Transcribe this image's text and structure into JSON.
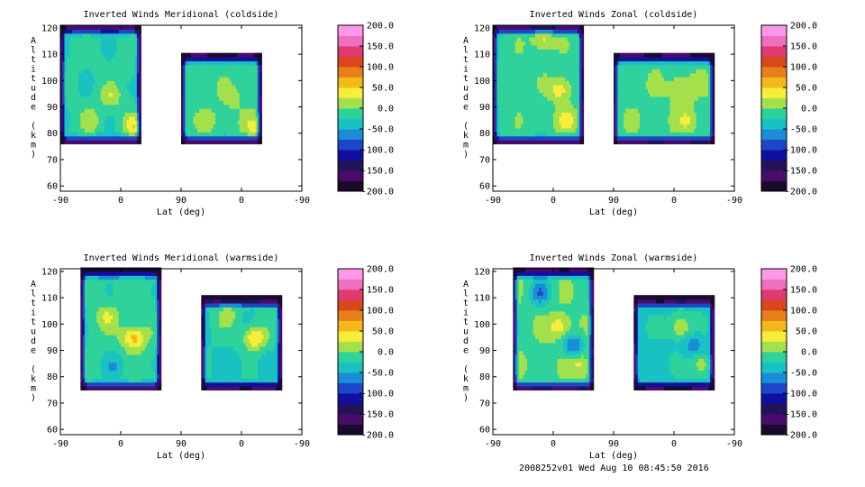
{
  "footer": "2008252v01 Wed Aug 10 08:45:50 2016",
  "chart_data": [
    {
      "type": "heatmap",
      "title": "Inverted Winds Meridional (coldside)",
      "xlabel": "Lat (deg)",
      "ylabel": "Altitude (km)",
      "x_ticks": [
        "-90",
        "0",
        "90",
        "0",
        "-90"
      ],
      "y_ticks": [
        "60",
        "70",
        "80",
        "90",
        "100",
        "110",
        "120"
      ],
      "ylim": [
        58,
        121
      ],
      "colorbar": {
        "min": -200,
        "max": 200,
        "labels": [
          "200.0",
          "150.0",
          "100.0",
          "50.0",
          "0.0",
          "-50.0",
          "-100.0",
          "-150.0",
          "-200.0"
        ]
      },
      "panels": [
        {
          "lat_range": [
            -90,
            30
          ],
          "alt_range": [
            76,
            121
          ],
          "base": -20
        },
        {
          "lat_range": [
            -90,
            30
          ],
          "alt_range": [
            76,
            110
          ],
          "base": -10
        }
      ],
      "features": [
        {
          "lat": -15,
          "alt": 94,
          "value": 20
        },
        {
          "lat": 5,
          "alt": 103,
          "value": -10
        },
        {
          "lat": -45,
          "alt": 85,
          "value": 15
        },
        {
          "lat": 20,
          "alt": 83,
          "value": 40
        }
      ]
    },
    {
      "type": "heatmap",
      "title": "Inverted Winds Zonal (coldside)",
      "xlabel": "Lat (deg)",
      "ylabel": "Altitude (km)",
      "x_ticks": [
        "-90",
        "0",
        "90",
        "0",
        "-90"
      ],
      "y_ticks": [
        "60",
        "70",
        "80",
        "90",
        "100",
        "110",
        "120"
      ],
      "ylim": [
        58,
        121
      ],
      "colorbar": {
        "min": -200,
        "max": 200,
        "labels": [
          "200.0",
          "150.0",
          "100.0",
          "50.0",
          "0.0",
          "-50.0",
          "-100.0",
          "-150.0",
          "-200.0"
        ]
      },
      "panels": [
        {
          "lat_range": [
            -90,
            45
          ],
          "alt_range": [
            76,
            121
          ],
          "base": -10
        },
        {
          "lat_range": [
            -90,
            60
          ],
          "alt_range": [
            76,
            110
          ],
          "base": -5
        }
      ],
      "features": [
        {
          "lat": 10,
          "alt": 97,
          "value": 45
        },
        {
          "lat": -15,
          "alt": 116,
          "value": 35
        },
        {
          "lat": 20,
          "alt": 85,
          "value": 35
        }
      ]
    },
    {
      "type": "heatmap",
      "title": "Inverted Winds Meridional (warmside)",
      "xlabel": "Lat (deg)",
      "ylabel": "Altitude (km)",
      "x_ticks": [
        "-90",
        "0",
        "90",
        "0",
        "-90"
      ],
      "y_ticks": [
        "60",
        "70",
        "80",
        "90",
        "100",
        "110",
        "120"
      ],
      "ylim": [
        58,
        121
      ],
      "colorbar": {
        "min": -200,
        "max": 200,
        "labels": [
          "200.0",
          "150.0",
          "100.0",
          "50.0",
          "0.0",
          "-50.0",
          "-100.0",
          "-150.0",
          "-200.0"
        ]
      },
      "panels": [
        {
          "lat_range": [
            -60,
            60
          ],
          "alt_range": [
            75,
            121
          ],
          "base": -15
        },
        {
          "lat_range": [
            -60,
            60
          ],
          "alt_range": [
            75,
            110
          ],
          "base": -25
        }
      ],
      "features": [
        {
          "lat": 15,
          "alt": 95,
          "value": 30
        },
        {
          "lat": -20,
          "alt": 103,
          "value": 25
        },
        {
          "lat": -10,
          "alt": 84,
          "value": -45
        },
        {
          "lat": 25,
          "alt": 95,
          "value": 25
        }
      ]
    },
    {
      "type": "heatmap",
      "title": "Inverted Winds Zonal (warmside)",
      "xlabel": "Lat (deg)",
      "ylabel": "Altitude (km)",
      "x_ticks": [
        "-90",
        "0",
        "90",
        "0",
        "-90"
      ],
      "y_ticks": [
        "60",
        "70",
        "80",
        "90",
        "100",
        "110",
        "120"
      ],
      "ylim": [
        58,
        121
      ],
      "colorbar": {
        "min": -200,
        "max": 200,
        "labels": [
          "200.0",
          "150.0",
          "100.0",
          "50.0",
          "0.0",
          "-50.0",
          "-100.0",
          "-150.0",
          "-200.0"
        ]
      },
      "panels": [
        {
          "lat_range": [
            -60,
            60
          ],
          "alt_range": [
            75,
            121
          ],
          "base": -5
        },
        {
          "lat_range": [
            -60,
            60
          ],
          "alt_range": [
            75,
            110
          ],
          "base": -30
        }
      ],
      "features": [
        {
          "lat": 10,
          "alt": 99,
          "value": 45
        },
        {
          "lat": -20,
          "alt": 112,
          "value": -70
        },
        {
          "lat": 30,
          "alt": 92,
          "value": -75
        },
        {
          "lat": 40,
          "alt": 85,
          "value": 35
        }
      ]
    }
  ]
}
